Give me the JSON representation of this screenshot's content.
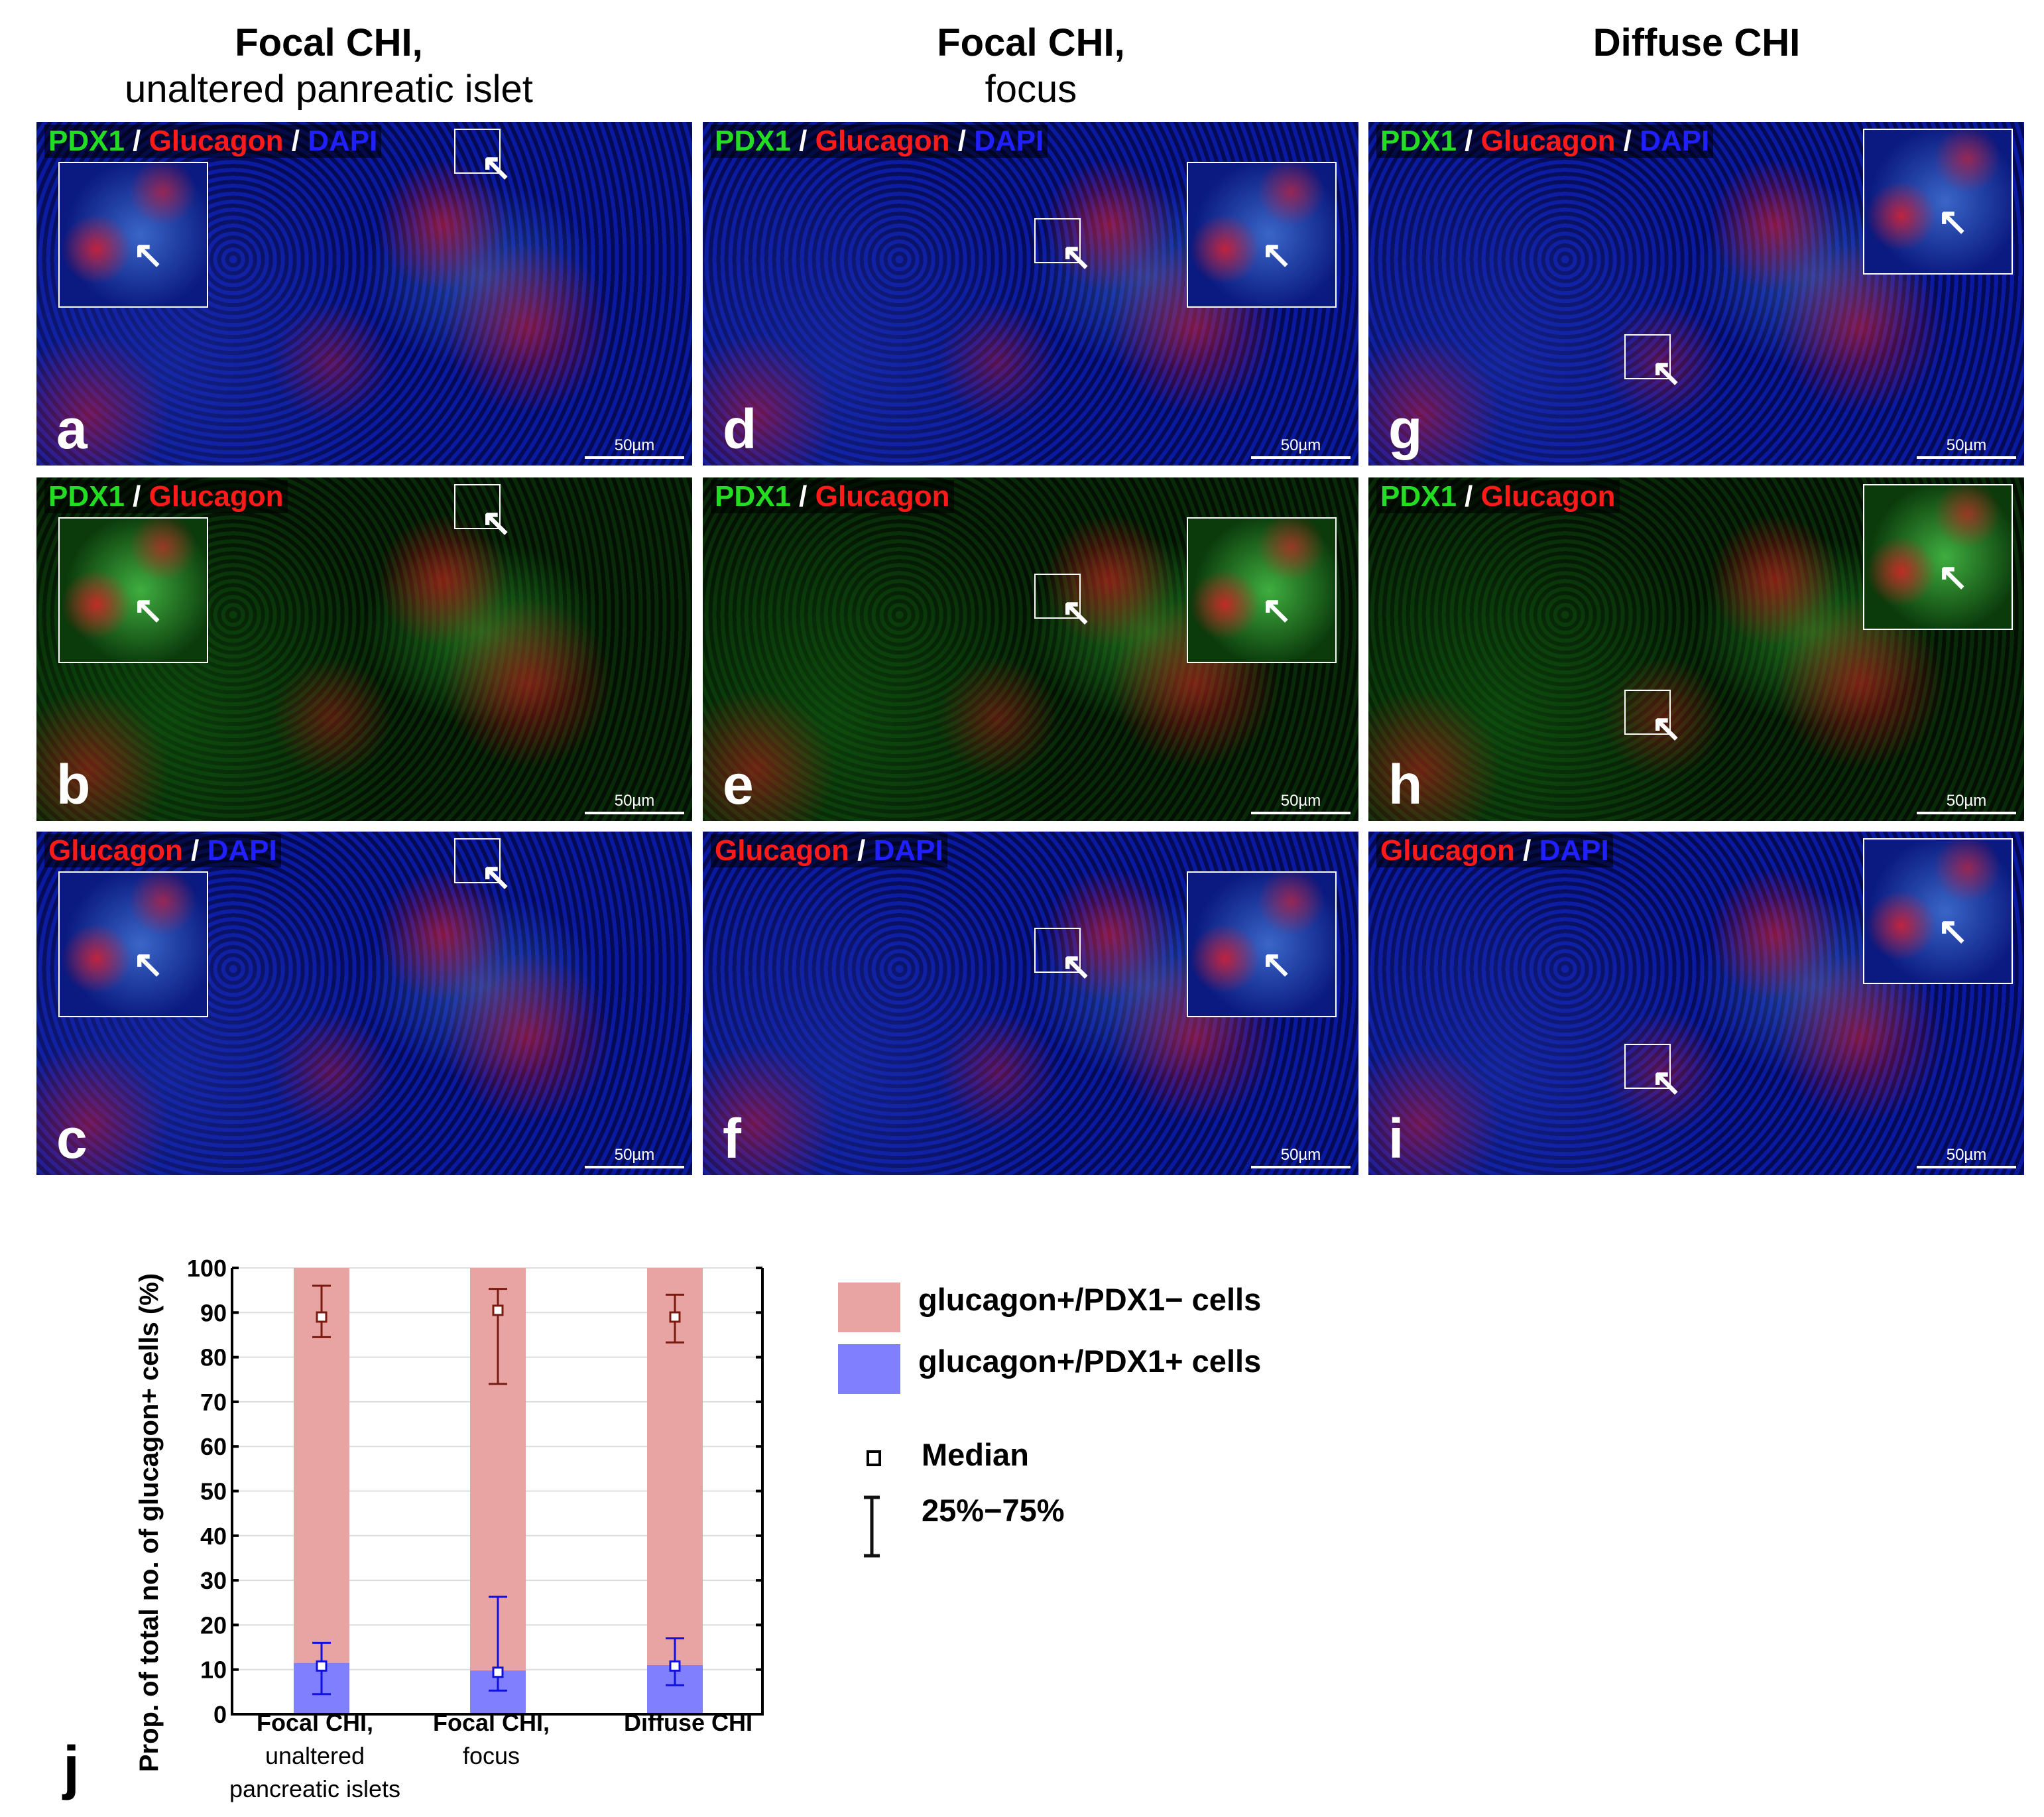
{
  "columns": [
    {
      "title": "Focal CHI,",
      "subtitle": "unaltered panreatic islet"
    },
    {
      "title": "Focal CHI,",
      "subtitle": "focus"
    },
    {
      "title": "Diffuse CHI",
      "subtitle": ""
    }
  ],
  "stain_colors": {
    "PDX1": "#22dd22",
    "Glucagon": "#ff1a1a",
    "DAPI": "#2020ff",
    "sep": "#ffffff"
  },
  "panels": [
    {
      "letter": "a",
      "col": 0,
      "row": 0,
      "stains": [
        "PDX1",
        "Glucagon",
        "DAPI"
      ],
      "scale": "50µm"
    },
    {
      "letter": "b",
      "col": 0,
      "row": 1,
      "stains": [
        "PDX1",
        "Glucagon"
      ],
      "scale": "50µm"
    },
    {
      "letter": "c",
      "col": 0,
      "row": 2,
      "stains": [
        "Glucagon",
        "DAPI"
      ],
      "scale": "50µm"
    },
    {
      "letter": "d",
      "col": 1,
      "row": 0,
      "stains": [
        "PDX1",
        "Glucagon",
        "DAPI"
      ],
      "scale": "50µm"
    },
    {
      "letter": "e",
      "col": 1,
      "row": 1,
      "stains": [
        "PDX1",
        "Glucagon"
      ],
      "scale": "50µm"
    },
    {
      "letter": "f",
      "col": 1,
      "row": 2,
      "stains": [
        "Glucagon",
        "DAPI"
      ],
      "scale": "50µm"
    },
    {
      "letter": "g",
      "col": 2,
      "row": 0,
      "stains": [
        "PDX1",
        "Glucagon",
        "DAPI"
      ],
      "scale": "50µm"
    },
    {
      "letter": "h",
      "col": 2,
      "row": 1,
      "stains": [
        "PDX1",
        "Glucagon"
      ],
      "scale": "50µm"
    },
    {
      "letter": "i",
      "col": 2,
      "row": 2,
      "stains": [
        "Glucagon",
        "DAPI"
      ],
      "scale": "50µm"
    }
  ],
  "panel_j_letter": "j",
  "chart_data": {
    "type": "bar",
    "stacked": true,
    "categories": [
      [
        "Focal CHI,",
        "unaltered",
        "pancreatic islets"
      ],
      [
        "Focal CHI,",
        "focus"
      ],
      [
        "Diffuse CHI"
      ]
    ],
    "ylabel": "Prop. of total no. of glucagon+ cells (%)",
    "ylim": [
      0,
      100
    ],
    "yticks": [
      0,
      10,
      20,
      30,
      40,
      50,
      60,
      70,
      80,
      90,
      100
    ],
    "grid": true,
    "series": [
      {
        "name": "glucagon+/PDX1+ cells",
        "color": "#8080ff",
        "errcolor": "#1010e0",
        "values": [
          11.5,
          9.8,
          11
        ],
        "median": [
          10.8,
          9.4,
          10.8
        ],
        "q25": [
          4.5,
          5.3,
          6.5
        ],
        "q75": [
          16,
          26.3,
          17
        ]
      },
      {
        "name": "glucagon+/PDX1− cells",
        "color": "#e8a4a2",
        "errcolor": "#7a1a10",
        "values": [
          88.5,
          90.2,
          89
        ],
        "median": [
          89,
          90.5,
          89
        ],
        "q25": [
          84.5,
          74,
          83.3
        ],
        "q75": [
          96,
          95.3,
          94
        ]
      }
    ],
    "legend": {
      "position": "right",
      "items": [
        "glucagon+/PDX1− cells",
        "glucagon+/PDX1+ cells"
      ],
      "median_label": "Median",
      "iqr_label": "25%−75%"
    }
  }
}
